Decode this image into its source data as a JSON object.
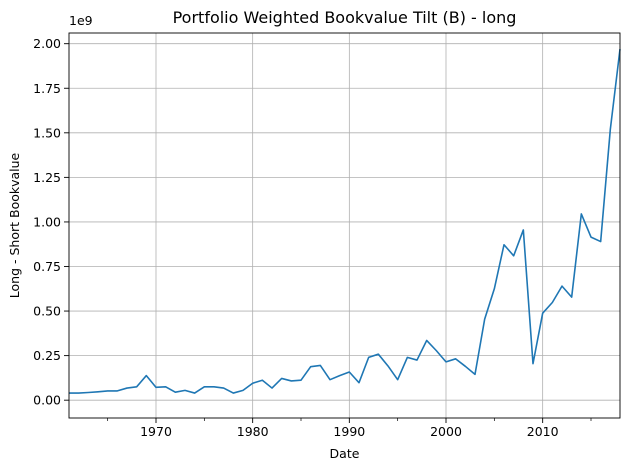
{
  "chart_data": {
    "type": "line",
    "title": "Portfolio Weighted Bookvalue Tilt (B) - long",
    "xlabel": "Date",
    "ylabel": "Long - Short Bookvalue",
    "y_offset_label": "1e9",
    "xlim": [
      1961,
      2018
    ],
    "ylim": [
      -0.1,
      2.06
    ],
    "y_scale_factor": 1000000000,
    "x_ticks": [
      1970,
      1980,
      1990,
      2000,
      2010
    ],
    "x_tick_labels": [
      "1970",
      "1980",
      "1990",
      "2000",
      "2010"
    ],
    "x_minor_ticks": [
      1965,
      1975,
      1985,
      1995,
      2005,
      2015
    ],
    "y_ticks": [
      0.0,
      0.25,
      0.5,
      0.75,
      1.0,
      1.25,
      1.5,
      1.75,
      2.0
    ],
    "y_tick_labels": [
      "0.00",
      "0.25",
      "0.50",
      "0.75",
      "1.00",
      "1.25",
      "1.50",
      "1.75",
      "2.00"
    ],
    "grid": true,
    "line_color": "#1f77b4",
    "series": [
      {
        "x": [
          1961,
          1962,
          1963,
          1964,
          1965,
          1966,
          1967,
          1968,
          1969,
          1970,
          1971,
          1972,
          1973,
          1974,
          1975,
          1976,
          1977,
          1978,
          1979,
          1980,
          1981,
          1982,
          1983,
          1984,
          1985,
          1986,
          1987,
          1988,
          1989,
          1990,
          1991,
          1992,
          1993,
          1994,
          1995,
          1996,
          1997,
          1998,
          1999,
          2000,
          2001,
          2002,
          2003,
          2004,
          2005,
          2006,
          2007,
          2008,
          2009,
          2010,
          2011,
          2012,
          2013,
          2014,
          2015,
          2016,
          2017,
          2018
        ],
        "values": [
          0.04,
          0.04,
          0.043,
          0.047,
          0.052,
          0.052,
          0.068,
          0.075,
          0.138,
          0.072,
          0.075,
          0.045,
          0.055,
          0.04,
          0.075,
          0.075,
          0.068,
          0.04,
          0.055,
          0.095,
          0.112,
          0.068,
          0.122,
          0.108,
          0.112,
          0.188,
          0.195,
          0.115,
          0.138,
          0.158,
          0.098,
          0.24,
          0.258,
          0.192,
          0.115,
          0.24,
          0.225,
          0.335,
          0.278,
          0.215,
          0.232,
          0.19,
          0.145,
          0.455,
          0.625,
          0.872,
          0.81,
          0.955,
          0.205,
          0.488,
          0.548,
          0.64,
          0.578,
          1.045,
          0.915,
          0.89,
          1.52,
          1.97
        ]
      }
    ]
  }
}
